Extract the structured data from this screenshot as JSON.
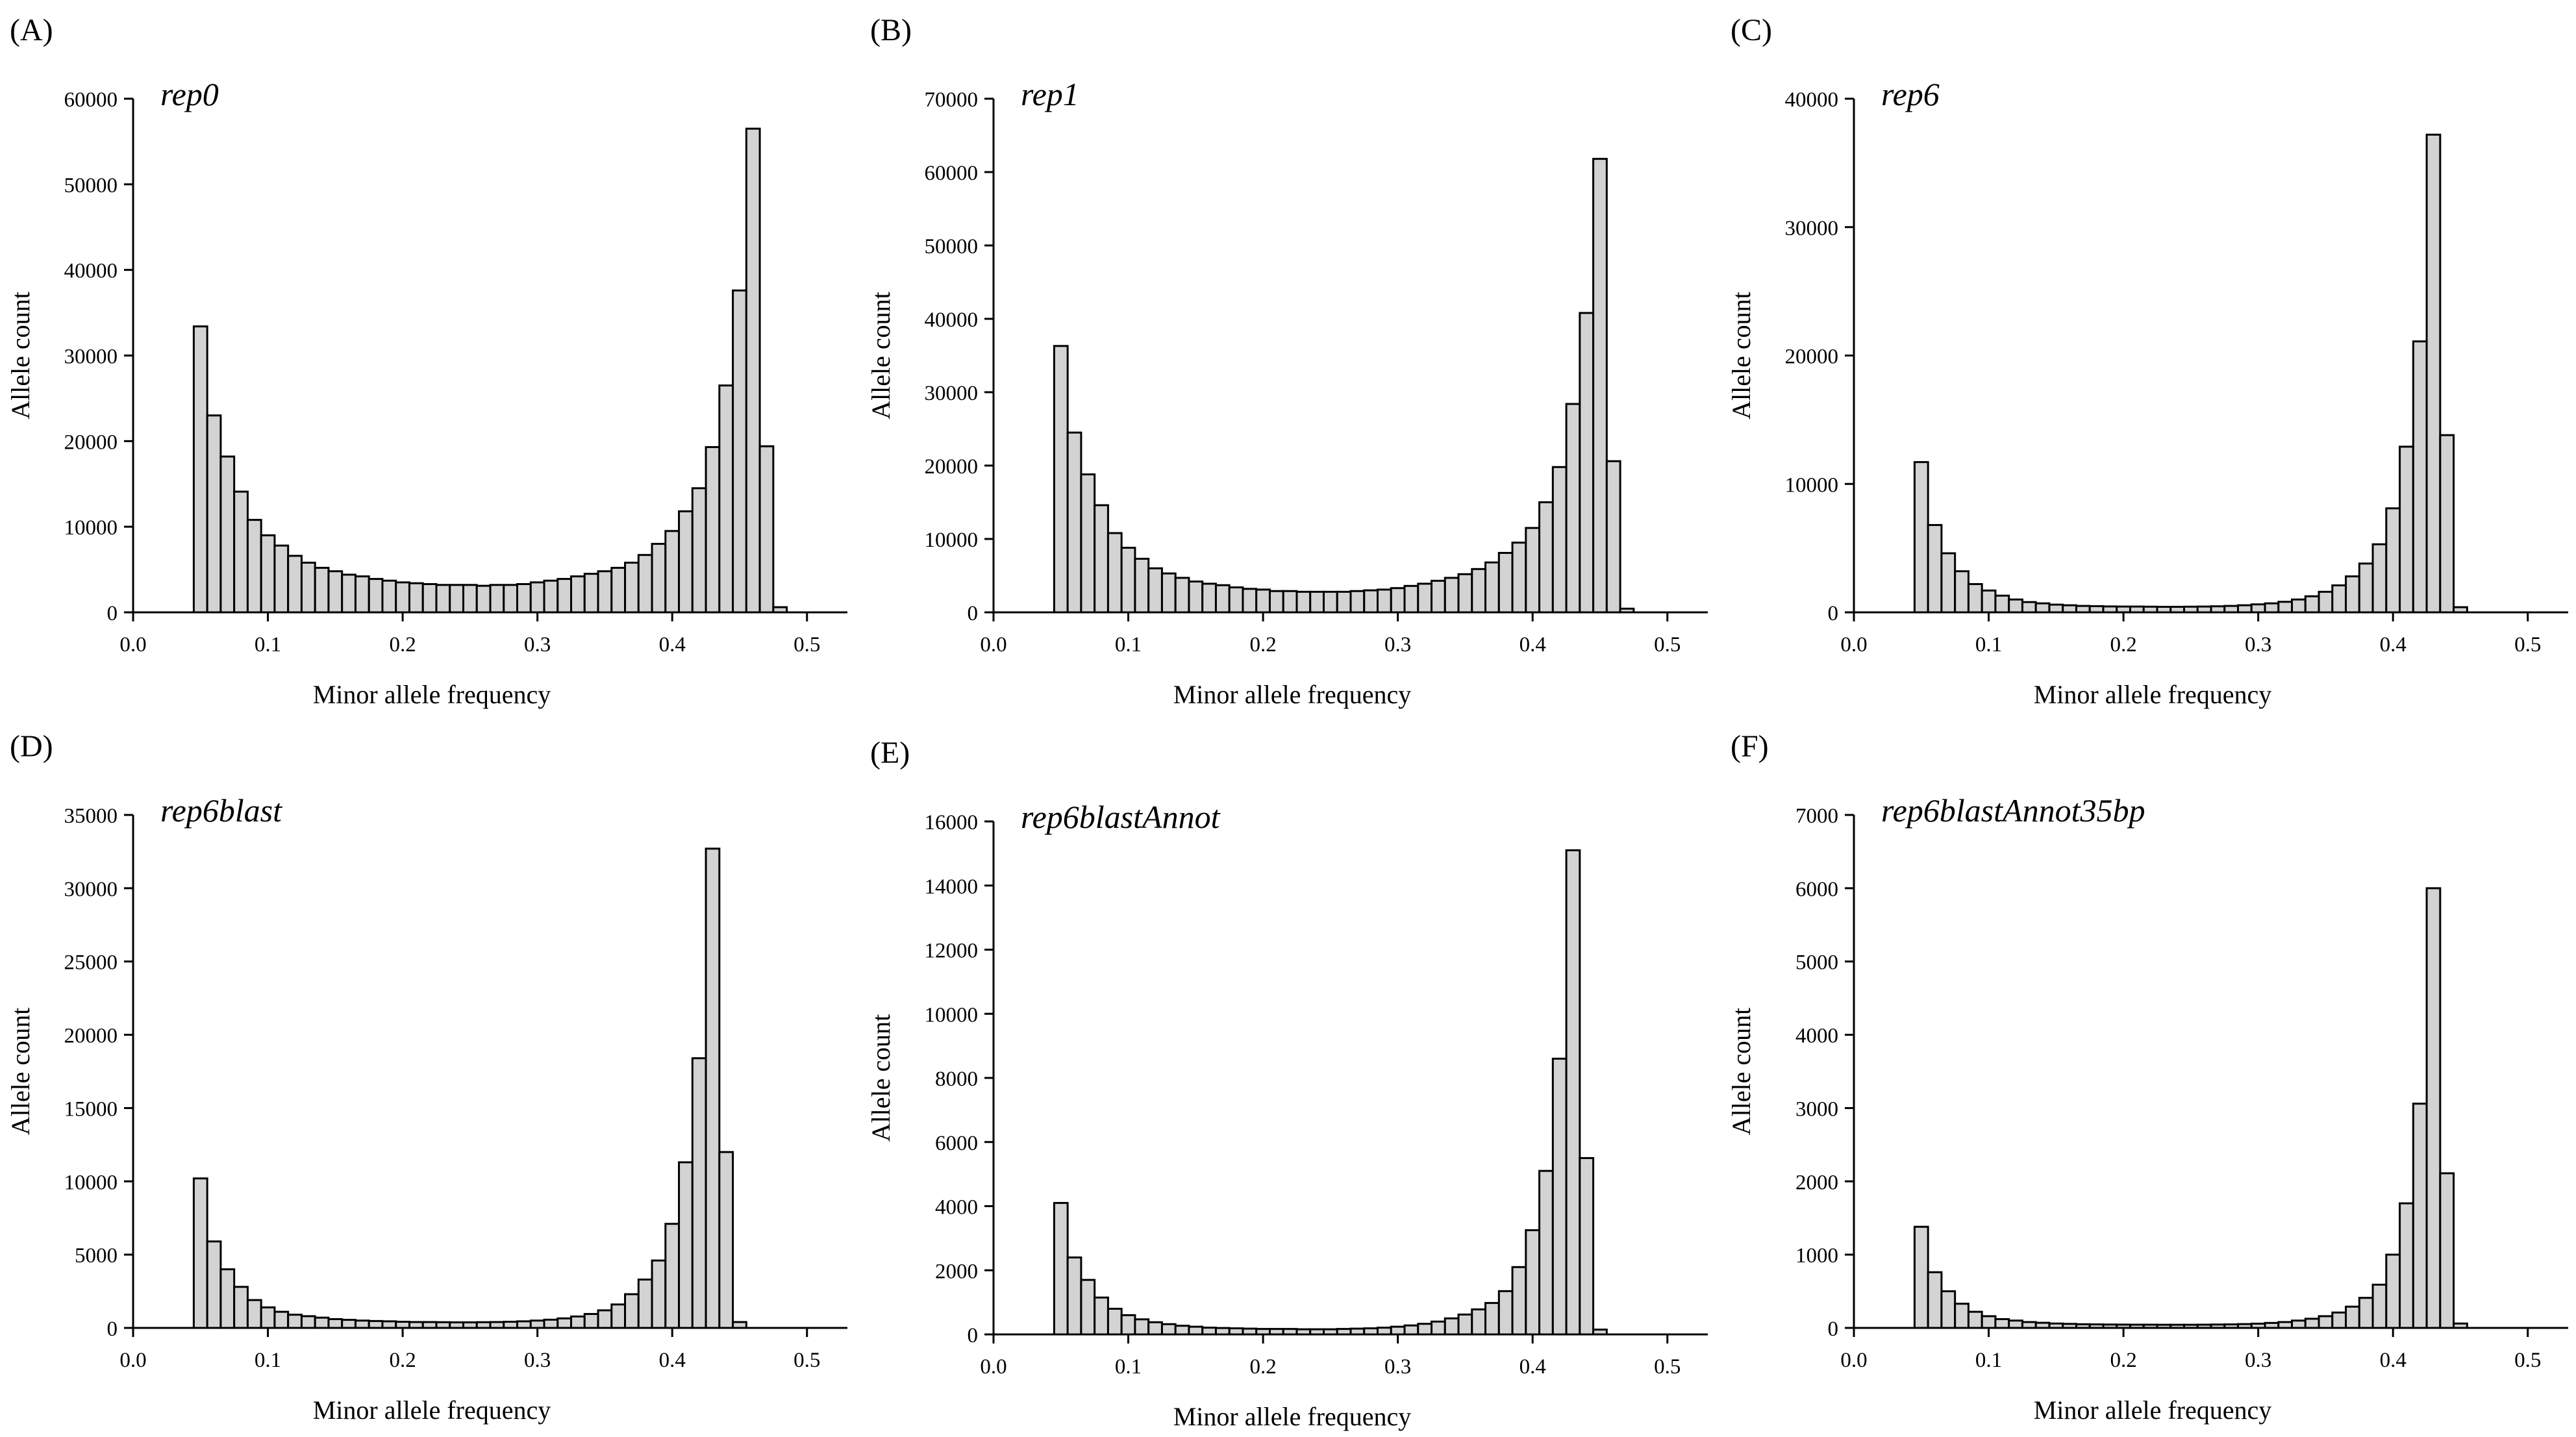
{
  "chart_data": [
    {
      "type": "bar",
      "letter": "(A)",
      "title": "rep0",
      "xlabel": "Minor allele frequency",
      "ylabel": "Allele count",
      "xlim": [
        0.0,
        0.53
      ],
      "ylim": [
        0,
        60000
      ],
      "xticks": [
        "0.0",
        "0.1",
        "0.2",
        "0.3",
        "0.4",
        "0.5"
      ],
      "yticks": [
        "0",
        "10000",
        "20000",
        "30000",
        "40000",
        "50000",
        "60000"
      ],
      "bin_start": 0.045,
      "bin_width": 0.01,
      "values": [
        33400,
        23000,
        18200,
        14100,
        10800,
        9000,
        7800,
        6600,
        5800,
        5200,
        4800,
        4400,
        4200,
        3900,
        3700,
        3500,
        3400,
        3300,
        3200,
        3200,
        3200,
        3100,
        3200,
        3200,
        3300,
        3500,
        3700,
        3900,
        4200,
        4500,
        4800,
        5200,
        5800,
        6700,
        8000,
        9500,
        11800,
        14500,
        19300,
        26500,
        37600,
        56500,
        19400,
        600
      ]
    },
    {
      "type": "bar",
      "letter": "(B)",
      "title": "rep1",
      "xlabel": "Minor allele frequency",
      "ylabel": "Allele count",
      "xlim": [
        0.0,
        0.53
      ],
      "ylim": [
        0,
        70000
      ],
      "xticks": [
        "0.0",
        "0.1",
        "0.2",
        "0.3",
        "0.4",
        "0.5"
      ],
      "yticks": [
        "0",
        "10000",
        "20000",
        "30000",
        "40000",
        "50000",
        "60000",
        "70000"
      ],
      "bin_start": 0.045,
      "bin_width": 0.01,
      "values": [
        36300,
        24500,
        18800,
        14600,
        10800,
        8800,
        7300,
        6000,
        5300,
        4700,
        4200,
        3900,
        3700,
        3400,
        3200,
        3100,
        2900,
        2900,
        2800,
        2800,
        2800,
        2800,
        2900,
        3000,
        3100,
        3300,
        3600,
        3900,
        4300,
        4700,
        5200,
        5900,
        6800,
        8100,
        9500,
        11500,
        15000,
        19800,
        28400,
        40800,
        61800,
        20600,
        500
      ]
    },
    {
      "type": "bar",
      "letter": "(C)",
      "title": "rep6",
      "xlabel": "Minor allele frequency",
      "ylabel": "Allele count",
      "xlim": [
        0.0,
        0.53
      ],
      "ylim": [
        0,
        40000
      ],
      "xticks": [
        "0.0",
        "0.1",
        "0.2",
        "0.3",
        "0.4",
        "0.5"
      ],
      "yticks": [
        "0",
        "10000",
        "20000",
        "30000",
        "40000"
      ],
      "bin_start": 0.045,
      "bin_width": 0.01,
      "values": [
        11700,
        6800,
        4600,
        3200,
        2200,
        1700,
        1300,
        1000,
        800,
        700,
        600,
        550,
        500,
        480,
        460,
        450,
        450,
        440,
        430,
        430,
        440,
        450,
        470,
        500,
        550,
        620,
        700,
        820,
        1000,
        1250,
        1600,
        2100,
        2800,
        3800,
        5300,
        8100,
        12900,
        21100,
        37200,
        13800,
        400
      ]
    },
    {
      "type": "bar",
      "letter": "(D)",
      "title": "rep6blast",
      "xlabel": "Minor allele frequency",
      "ylabel": "Allele count",
      "xlim": [
        0.0,
        0.53
      ],
      "ylim": [
        0,
        35000
      ],
      "xticks": [
        "0.0",
        "0.1",
        "0.2",
        "0.3",
        "0.4",
        "0.5"
      ],
      "yticks": [
        "0",
        "5000",
        "10000",
        "15000",
        "20000",
        "25000",
        "30000",
        "35000"
      ],
      "bin_start": 0.045,
      "bin_width": 0.01,
      "values": [
        10200,
        5900,
        4000,
        2800,
        1900,
        1400,
        1100,
        900,
        800,
        700,
        600,
        550,
        500,
        470,
        450,
        420,
        400,
        400,
        390,
        380,
        380,
        390,
        400,
        420,
        450,
        500,
        560,
        650,
        780,
        950,
        1200,
        1600,
        2300,
        3300,
        4600,
        7100,
        11300,
        18400,
        32700,
        12000,
        400
      ]
    },
    {
      "type": "bar",
      "letter": "(E)",
      "title": "rep6blastAnnot",
      "xlabel": "Minor allele frequency",
      "ylabel": "Allele count",
      "xlim": [
        0.0,
        0.53
      ],
      "ylim": [
        0,
        16000
      ],
      "xticks": [
        "0.0",
        "0.1",
        "0.2",
        "0.3",
        "0.4",
        "0.5"
      ],
      "yticks": [
        "0",
        "2000",
        "4000",
        "6000",
        "8000",
        "10000",
        "12000",
        "14000",
        "16000"
      ],
      "bin_start": 0.045,
      "bin_width": 0.01,
      "values": [
        4100,
        2400,
        1700,
        1150,
        800,
        600,
        470,
        380,
        320,
        270,
        240,
        210,
        200,
        190,
        180,
        170,
        170,
        170,
        160,
        160,
        160,
        170,
        180,
        190,
        210,
        240,
        280,
        330,
        400,
        500,
        620,
        780,
        980,
        1350,
        2100,
        3250,
        5100,
        8600,
        15100,
        5500,
        150
      ]
    },
    {
      "type": "bar",
      "letter": "(F)",
      "title": "rep6blastAnnot35bp",
      "xlabel": "Minor allele frequency",
      "ylabel": "Allele count",
      "xlim": [
        0.0,
        0.53
      ],
      "ylim": [
        0,
        7000
      ],
      "xticks": [
        "0.0",
        "0.1",
        "0.2",
        "0.3",
        "0.4",
        "0.5"
      ],
      "yticks": [
        "0",
        "1000",
        "2000",
        "3000",
        "4000",
        "5000",
        "6000",
        "7000"
      ],
      "bin_start": 0.045,
      "bin_width": 0.01,
      "values": [
        1380,
        760,
        500,
        330,
        220,
        160,
        120,
        100,
        80,
        70,
        60,
        55,
        50,
        48,
        46,
        45,
        44,
        44,
        43,
        43,
        43,
        44,
        46,
        48,
        52,
        58,
        68,
        80,
        100,
        125,
        160,
        210,
        290,
        410,
        590,
        1000,
        1700,
        3060,
        6000,
        2110,
        60
      ]
    }
  ]
}
